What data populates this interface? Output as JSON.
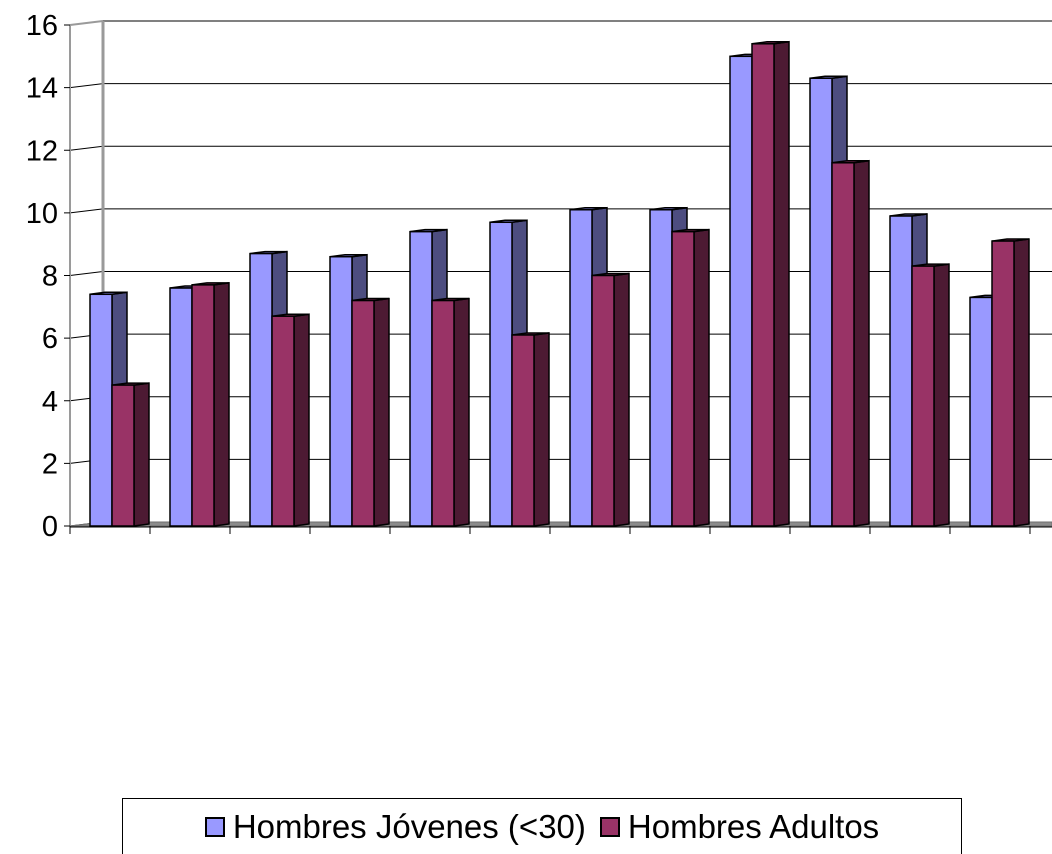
{
  "chart_data": {
    "type": "bar",
    "categories": [
      "",
      "",
      "",
      "",
      "",
      "",
      "",
      "",
      "",
      "",
      "",
      ""
    ],
    "series": [
      {
        "name": "Hombres Jóvenes (<30)",
        "color": "#9999ff",
        "values": [
          7.4,
          7.6,
          8.7,
          8.6,
          9.4,
          9.7,
          10.1,
          10.1,
          15.0,
          14.3,
          9.9,
          7.3
        ]
      },
      {
        "name": "Hombres Adultos",
        "color": "#993366",
        "values": [
          4.5,
          7.7,
          6.7,
          7.2,
          7.2,
          6.1,
          8.0,
          9.4,
          15.4,
          11.6,
          8.3,
          9.1
        ]
      }
    ],
    "yticks": [
      0,
      2,
      4,
      6,
      8,
      10,
      12,
      14,
      16
    ],
    "ylim": [
      0,
      16
    ],
    "grid": true,
    "legend_position": "bottom",
    "three_d": true
  }
}
